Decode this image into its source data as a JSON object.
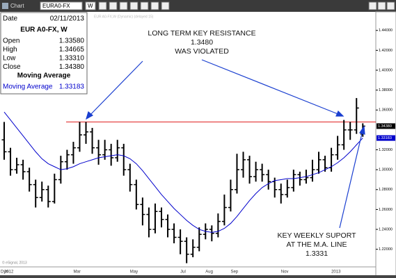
{
  "toolbar": {
    "title": "Chart",
    "symbol": "EURA0-FX",
    "interval": "W"
  },
  "info_panel": {
    "date_label": "Date",
    "date": "02/11/2013",
    "symbol": "EUR A0-FX, W",
    "rows": [
      {
        "label": "Open",
        "value": "1.33580"
      },
      {
        "label": "High",
        "value": "1.34665"
      },
      {
        "label": "Low",
        "value": "1.33310"
      },
      {
        "label": "Close",
        "value": "1.34380"
      }
    ],
    "study_title": "Moving Average",
    "study_value": "1.33183"
  },
  "chart_data": {
    "type": "ohlc",
    "watermark": "EUR A0-FX,W (Dynamic) (delayed 15)",
    "copyright": "© eSignal, 2013",
    "status": "Dyn",
    "categories": [
      "2012",
      null,
      null,
      null,
      null,
      null,
      null,
      null,
      null,
      null,
      null,
      "Mar",
      null,
      null,
      null,
      null,
      null,
      null,
      null,
      null,
      "May",
      null,
      null,
      null,
      null,
      null,
      null,
      null,
      "Jul",
      null,
      null,
      null,
      "Aug",
      null,
      null,
      null,
      "Sep",
      null,
      null,
      null,
      null,
      null,
      null,
      null,
      "Nov",
      null,
      null,
      null,
      null,
      null,
      null,
      null,
      "2013",
      null,
      null,
      null,
      null,
      null
    ],
    "open": [
      1.33,
      1.318,
      1.3,
      1.305,
      1.298,
      1.285,
      1.272,
      1.28,
      1.268,
      1.29,
      1.308,
      1.315,
      1.322,
      1.335,
      1.338,
      1.322,
      1.315,
      1.32,
      1.312,
      1.322,
      1.3,
      1.285,
      1.265,
      1.255,
      1.24,
      1.258,
      1.25,
      1.24,
      1.232,
      1.228,
      1.215,
      1.222,
      1.235,
      1.24,
      1.236,
      1.248,
      1.262,
      1.28,
      1.3,
      1.31,
      1.293,
      1.3,
      1.295,
      1.288,
      1.28,
      1.275,
      1.282,
      1.295,
      1.29,
      1.292,
      1.3,
      1.31,
      1.302,
      1.315,
      1.325,
      1.34,
      1.34,
      1.3358
    ],
    "high": [
      1.348,
      1.322,
      1.312,
      1.31,
      1.302,
      1.29,
      1.288,
      1.284,
      1.296,
      1.314,
      1.32,
      1.328,
      1.348,
      1.348,
      1.342,
      1.33,
      1.33,
      1.326,
      1.33,
      1.326,
      1.306,
      1.29,
      1.272,
      1.262,
      1.266,
      1.262,
      1.255,
      1.246,
      1.24,
      1.232,
      1.23,
      1.242,
      1.246,
      1.244,
      1.256,
      1.275,
      1.29,
      1.316,
      1.318,
      1.314,
      1.308,
      1.306,
      1.3,
      1.292,
      1.286,
      1.29,
      1.3,
      1.298,
      1.3,
      1.31,
      1.318,
      1.314,
      1.322,
      1.334,
      1.35,
      1.348,
      1.372,
      1.34665
    ],
    "low": [
      1.31,
      1.294,
      1.296,
      1.29,
      1.278,
      1.262,
      1.268,
      1.262,
      1.266,
      1.286,
      1.3,
      1.306,
      1.318,
      1.326,
      1.316,
      1.305,
      1.31,
      1.304,
      1.308,
      1.294,
      1.278,
      1.26,
      1.244,
      1.232,
      1.236,
      1.242,
      1.232,
      1.226,
      1.215,
      1.206,
      1.212,
      1.218,
      1.23,
      1.228,
      1.232,
      1.244,
      1.258,
      1.276,
      1.292,
      1.286,
      1.288,
      1.288,
      1.28,
      1.272,
      1.266,
      1.272,
      1.278,
      1.284,
      1.286,
      1.288,
      1.296,
      1.298,
      1.298,
      1.31,
      1.32,
      1.33,
      1.336,
      1.3331
    ],
    "close": [
      1.318,
      1.3,
      1.305,
      1.298,
      1.285,
      1.272,
      1.28,
      1.268,
      1.29,
      1.308,
      1.315,
      1.322,
      1.335,
      1.338,
      1.322,
      1.315,
      1.32,
      1.312,
      1.322,
      1.3,
      1.285,
      1.265,
      1.255,
      1.24,
      1.258,
      1.25,
      1.24,
      1.232,
      1.228,
      1.215,
      1.222,
      1.235,
      1.24,
      1.236,
      1.248,
      1.262,
      1.28,
      1.3,
      1.31,
      1.293,
      1.3,
      1.295,
      1.288,
      1.28,
      1.275,
      1.282,
      1.295,
      1.29,
      1.292,
      1.3,
      1.31,
      1.302,
      1.315,
      1.325,
      1.34,
      1.34,
      1.362,
      1.3438
    ],
    "color": "#000000",
    "moving_average": {
      "name": "Moving Average",
      "color": "#0000cc",
      "values": [
        1.358,
        1.35,
        1.342,
        1.334,
        1.326,
        1.318,
        1.311,
        1.306,
        1.303,
        1.3,
        1.301,
        1.303,
        1.306,
        1.308,
        1.31,
        1.312,
        1.313,
        1.314,
        1.315,
        1.314,
        1.311,
        1.306,
        1.299,
        1.291,
        1.283,
        1.275,
        1.268,
        1.261,
        1.255,
        1.249,
        1.244,
        1.24,
        1.238,
        1.237,
        1.238,
        1.241,
        1.246,
        1.253,
        1.261,
        1.269,
        1.276,
        1.282,
        1.286,
        1.289,
        1.29,
        1.291,
        1.291,
        1.292,
        1.293,
        1.295,
        1.297,
        1.3,
        1.303,
        1.307,
        1.312,
        1.318,
        1.325,
        1.33183
      ]
    },
    "resistance": {
      "value": 1.348,
      "color": "#e02020"
    },
    "ylim": [
      1.203,
      1.458
    ],
    "yticks": [
      {
        "value": 1.44,
        "label": "1.44000"
      },
      {
        "value": 1.42,
        "label": "1.42000"
      },
      {
        "value": 1.4,
        "label": "1.40000"
      },
      {
        "value": 1.38,
        "label": "1.38000"
      },
      {
        "value": 1.36,
        "label": "1.36000"
      },
      {
        "value": 1.32,
        "label": "1.32000"
      },
      {
        "value": 1.3,
        "label": "1.30000"
      },
      {
        "value": 1.28,
        "label": "1.28000"
      },
      {
        "value": 1.26,
        "label": "1.26000"
      },
      {
        "value": 1.24,
        "label": "1.24000"
      },
      {
        "value": 1.22,
        "label": "1.22000"
      }
    ],
    "price_tags": [
      {
        "value": 1.3438,
        "label": "1.34380",
        "color": "#000000"
      },
      {
        "value": 1.33183,
        "label": "1.33183",
        "color": "#0000cc"
      }
    ],
    "annotations": [
      {
        "lines": [
          "LONG TERM KEY RESISTANCE",
          "1.3480",
          "WAS VIOLATED"
        ]
      },
      {
        "lines": [
          "KEY WEEKLY SUPORT",
          "AT THE M.A. LINE",
          "1.3331"
        ]
      }
    ]
  }
}
